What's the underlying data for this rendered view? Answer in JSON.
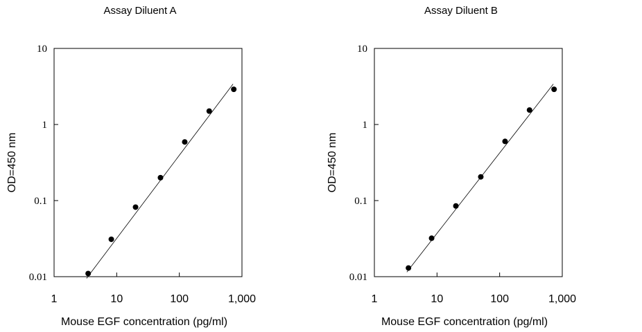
{
  "chart_data": [
    {
      "type": "scatter",
      "title": "Assay Diluent A",
      "xlabel": "Mouse EGF concentration (pg/ml)",
      "ylabel": "OD=450 nm",
      "xscale": "log",
      "yscale": "log",
      "xlim": [
        1,
        1000
      ],
      "ylim": [
        0.01,
        10
      ],
      "x_ticks": [
        1,
        10,
        100,
        1000
      ],
      "x_tick_labels": [
        "1",
        "10",
        "100",
        "1,000"
      ],
      "y_ticks": [
        0.01,
        0.1,
        1,
        10
      ],
      "y_tick_labels": [
        "0.01",
        "0.1",
        "1",
        "10"
      ],
      "grid": false,
      "fit_line": {
        "x": [
          3.3,
          720
        ],
        "y": [
          0.0095,
          3.4
        ]
      },
      "series": [
        {
          "x": [
            3.5,
            8.2,
            20,
            50,
            122,
            300,
            740
          ],
          "y": [
            0.011,
            0.031,
            0.082,
            0.2,
            0.59,
            1.5,
            2.9
          ]
        }
      ]
    },
    {
      "type": "scatter",
      "title": "Assay Diluent B",
      "xlabel": "Mouse EGF concentration (pg/ml)",
      "ylabel": "OD=450 nm",
      "xscale": "log",
      "yscale": "log",
      "xlim": [
        1,
        1000
      ],
      "ylim": [
        0.01,
        10
      ],
      "x_ticks": [
        1,
        10,
        100,
        1000
      ],
      "x_tick_labels": [
        "1",
        "10",
        "100",
        "1,000"
      ],
      "y_ticks": [
        0.01,
        0.1,
        1,
        10
      ],
      "y_tick_labels": [
        "0.01",
        "0.1",
        "1",
        "10"
      ],
      "grid": false,
      "fit_line": {
        "x": [
          3.3,
          720
        ],
        "y": [
          0.0115,
          3.4
        ]
      },
      "series": [
        {
          "x": [
            3.5,
            8.2,
            20,
            50,
            122,
            300,
            740
          ],
          "y": [
            0.013,
            0.032,
            0.085,
            0.205,
            0.6,
            1.55,
            2.9
          ]
        }
      ]
    }
  ]
}
